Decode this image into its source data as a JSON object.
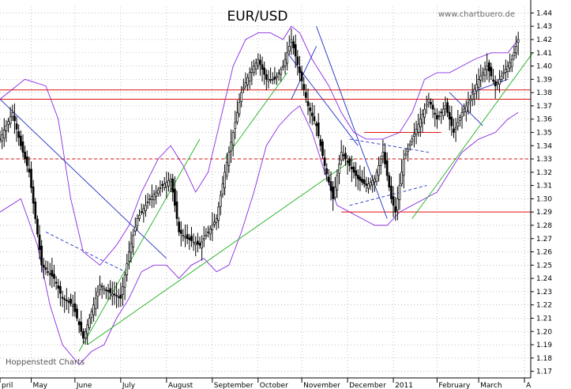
{
  "title": "EUR/USD",
  "watermark": "www.chartbuero.de",
  "credit": "Hoppenstedt Charts",
  "colors": {
    "background": "#ffffff",
    "grid": "#9a9a9a",
    "candles": "#000000",
    "support_resistance": "#e01010",
    "bollinger": "#8a2be2",
    "downtrend": "#2030c0",
    "uptrend": "#20b020"
  },
  "chart_data": {
    "type": "candlestick",
    "title": "EUR/USD",
    "xlabel": "",
    "ylabel": "",
    "ylim": [
      1.165,
      1.445
    ],
    "grid": true,
    "x_tick_labels": [
      "pril",
      "May",
      "June",
      "July",
      "August",
      "September",
      "October",
      "November",
      "December",
      "2011",
      "February",
      "March",
      "A"
    ],
    "y_ticks": [
      1.17,
      1.18,
      1.19,
      1.2,
      1.21,
      1.22,
      1.23,
      1.24,
      1.25,
      1.26,
      1.27,
      1.28,
      1.29,
      1.3,
      1.31,
      1.32,
      1.33,
      1.34,
      1.35,
      1.36,
      1.37,
      1.38,
      1.39,
      1.4,
      1.41,
      1.42,
      1.43,
      1.44
    ],
    "y_tick_labels": [
      "1.17",
      "1.18",
      "1.19",
      "1.20",
      "1.21",
      "1.22",
      "1.23",
      "1.24",
      "1.25",
      "1.26",
      "1.27",
      "1.28",
      "1.29",
      "1.30",
      "1.31",
      "1.32",
      "1.33",
      "1.34",
      "1.35",
      "1.36",
      "1.37",
      "1.38",
      "1.39",
      "1.40",
      "1.41",
      "1.42",
      "1.43",
      "1.44"
    ],
    "x_range_trading_days": [
      0,
      255
    ],
    "month_boundaries": [
      {
        "label": "pril",
        "day": 0
      },
      {
        "label": "May",
        "day": 15
      },
      {
        "label": "June",
        "day": 36
      },
      {
        "label": "July",
        "day": 58
      },
      {
        "label": "August",
        "day": 80
      },
      {
        "label": "September",
        "day": 102
      },
      {
        "label": "October",
        "day": 124
      },
      {
        "label": "November",
        "day": 145
      },
      {
        "label": "December",
        "day": 167
      },
      {
        "label": "2011",
        "day": 189
      },
      {
        "label": "February",
        "day": 210
      },
      {
        "label": "March",
        "day": 230
      },
      {
        "label": "A",
        "day": 252
      }
    ],
    "price_path": [
      [
        0,
        1.345
      ],
      [
        6,
        1.365
      ],
      [
        10,
        1.34
      ],
      [
        14,
        1.32
      ],
      [
        20,
        1.25
      ],
      [
        26,
        1.24
      ],
      [
        30,
        1.225
      ],
      [
        35,
        1.22
      ],
      [
        40,
        1.195
      ],
      [
        44,
        1.215
      ],
      [
        48,
        1.235
      ],
      [
        52,
        1.23
      ],
      [
        58,
        1.225
      ],
      [
        62,
        1.26
      ],
      [
        66,
        1.285
      ],
      [
        72,
        1.3
      ],
      [
        78,
        1.31
      ],
      [
        82,
        1.315
      ],
      [
        86,
        1.275
      ],
      [
        90,
        1.27
      ],
      [
        96,
        1.265
      ],
      [
        100,
        1.275
      ],
      [
        104,
        1.285
      ],
      [
        108,
        1.32
      ],
      [
        112,
        1.35
      ],
      [
        116,
        1.38
      ],
      [
        120,
        1.395
      ],
      [
        124,
        1.405
      ],
      [
        128,
        1.39
      ],
      [
        132,
        1.39
      ],
      [
        136,
        1.4
      ],
      [
        140,
        1.42
      ],
      [
        144,
        1.395
      ],
      [
        148,
        1.37
      ],
      [
        152,
        1.355
      ],
      [
        156,
        1.325
      ],
      [
        160,
        1.3
      ],
      [
        164,
        1.335
      ],
      [
        168,
        1.325
      ],
      [
        172,
        1.315
      ],
      [
        176,
        1.31
      ],
      [
        180,
        1.315
      ],
      [
        184,
        1.335
      ],
      [
        188,
        1.3
      ],
      [
        190,
        1.29
      ],
      [
        194,
        1.33
      ],
      [
        198,
        1.345
      ],
      [
        202,
        1.36
      ],
      [
        206,
        1.375
      ],
      [
        210,
        1.36
      ],
      [
        214,
        1.37
      ],
      [
        218,
        1.35
      ],
      [
        222,
        1.365
      ],
      [
        226,
        1.375
      ],
      [
        230,
        1.39
      ],
      [
        234,
        1.4
      ],
      [
        238,
        1.385
      ],
      [
        242,
        1.395
      ],
      [
        246,
        1.405
      ],
      [
        249,
        1.42
      ]
    ],
    "horizontal_lines": [
      {
        "y": 1.382,
        "style": "solid",
        "color": "#e01010",
        "from": 0,
        "to": 255
      },
      {
        "y": 1.375,
        "style": "solid",
        "color": "#e01010",
        "from": 0,
        "to": 255
      },
      {
        "y": 1.33,
        "style": "dashed",
        "color": "#e01010",
        "from": 0,
        "to": 255
      },
      {
        "y": 1.29,
        "style": "solid",
        "color": "#e01010",
        "from": 164,
        "to": 255
      },
      {
        "y": 1.35,
        "style": "solid",
        "color": "#e01010",
        "from": 175,
        "to": 212
      }
    ],
    "trend_lines": [
      {
        "color": "#2030c0",
        "style": "solid",
        "points": [
          [
            0,
            1.375
          ],
          [
            80,
            1.255
          ]
        ]
      },
      {
        "color": "#2030c0",
        "style": "dashed",
        "points": [
          [
            22,
            1.275
          ],
          [
            60,
            1.245
          ]
        ]
      },
      {
        "color": "#2030c0",
        "style": "solid",
        "points": [
          [
            152,
            1.43
          ],
          [
            186,
            1.285
          ]
        ]
      },
      {
        "color": "#2030c0",
        "style": "solid",
        "points": [
          [
            138,
            1.41
          ],
          [
            172,
            1.34
          ]
        ]
      },
      {
        "color": "#2030c0",
        "style": "solid",
        "points": [
          [
            140,
            1.375
          ],
          [
            152,
            1.415
          ]
        ]
      },
      {
        "color": "#2030c0",
        "style": "dashed",
        "points": [
          [
            168,
            1.345
          ],
          [
            206,
            1.335
          ]
        ]
      },
      {
        "color": "#2030c0",
        "style": "dashed",
        "points": [
          [
            168,
            1.295
          ],
          [
            205,
            1.31
          ]
        ]
      },
      {
        "color": "#2030c0",
        "style": "solid",
        "points": [
          [
            226,
            1.38
          ],
          [
            244,
            1.39
          ]
        ]
      },
      {
        "color": "#2030c0",
        "style": "solid",
        "points": [
          [
            216,
            1.38
          ],
          [
            232,
            1.355
          ]
        ]
      },
      {
        "color": "#20b020",
        "style": "solid",
        "points": [
          [
            38,
            1.185
          ],
          [
            96,
            1.345
          ]
        ]
      },
      {
        "color": "#20b020",
        "style": "solid",
        "points": [
          [
            42,
            1.19
          ],
          [
            170,
            1.33
          ]
        ]
      },
      {
        "color": "#20b020",
        "style": "solid",
        "points": [
          [
            108,
            1.33
          ],
          [
            138,
            1.395
          ]
        ]
      },
      {
        "color": "#20b020",
        "style": "solid",
        "points": [
          [
            198,
            1.285
          ],
          [
            256,
            1.41
          ]
        ]
      }
    ],
    "bollinger_bands": {
      "upper": [
        [
          0,
          1.375
        ],
        [
          12,
          1.39
        ],
        [
          22,
          1.385
        ],
        [
          28,
          1.36
        ],
        [
          34,
          1.3
        ],
        [
          40,
          1.26
        ],
        [
          48,
          1.25
        ],
        [
          56,
          1.265
        ],
        [
          62,
          1.28
        ],
        [
          68,
          1.305
        ],
        [
          76,
          1.33
        ],
        [
          82,
          1.34
        ],
        [
          88,
          1.325
        ],
        [
          94,
          1.305
        ],
        [
          100,
          1.32
        ],
        [
          106,
          1.36
        ],
        [
          112,
          1.4
        ],
        [
          118,
          1.42
        ],
        [
          124,
          1.425
        ],
        [
          130,
          1.425
        ],
        [
          136,
          1.42
        ],
        [
          140,
          1.43
        ],
        [
          144,
          1.425
        ],
        [
          150,
          1.405
        ],
        [
          158,
          1.385
        ],
        [
          164,
          1.365
        ],
        [
          170,
          1.35
        ],
        [
          176,
          1.345
        ],
        [
          184,
          1.345
        ],
        [
          192,
          1.35
        ],
        [
          198,
          1.365
        ],
        [
          204,
          1.39
        ],
        [
          210,
          1.395
        ],
        [
          216,
          1.395
        ],
        [
          222,
          1.4
        ],
        [
          228,
          1.405
        ],
        [
          236,
          1.41
        ],
        [
          244,
          1.41
        ],
        [
          249,
          1.42
        ]
      ],
      "lower": [
        [
          0,
          1.29
        ],
        [
          10,
          1.3
        ],
        [
          18,
          1.265
        ],
        [
          24,
          1.22
        ],
        [
          30,
          1.19
        ],
        [
          38,
          1.175
        ],
        [
          44,
          1.185
        ],
        [
          50,
          1.19
        ],
        [
          56,
          1.21
        ],
        [
          62,
          1.225
        ],
        [
          68,
          1.245
        ],
        [
          74,
          1.25
        ],
        [
          80,
          1.25
        ],
        [
          86,
          1.24
        ],
        [
          92,
          1.25
        ],
        [
          98,
          1.255
        ],
        [
          104,
          1.245
        ],
        [
          110,
          1.25
        ],
        [
          116,
          1.275
        ],
        [
          122,
          1.305
        ],
        [
          128,
          1.34
        ],
        [
          134,
          1.355
        ],
        [
          140,
          1.365
        ],
        [
          144,
          1.37
        ],
        [
          150,
          1.35
        ],
        [
          156,
          1.32
        ],
        [
          162,
          1.295
        ],
        [
          168,
          1.29
        ],
        [
          174,
          1.285
        ],
        [
          180,
          1.28
        ],
        [
          186,
          1.28
        ],
        [
          192,
          1.29
        ],
        [
          198,
          1.295
        ],
        [
          204,
          1.3
        ],
        [
          210,
          1.305
        ],
        [
          216,
          1.32
        ],
        [
          222,
          1.335
        ],
        [
          230,
          1.345
        ],
        [
          238,
          1.35
        ],
        [
          244,
          1.36
        ],
        [
          249,
          1.365
        ]
      ]
    }
  }
}
